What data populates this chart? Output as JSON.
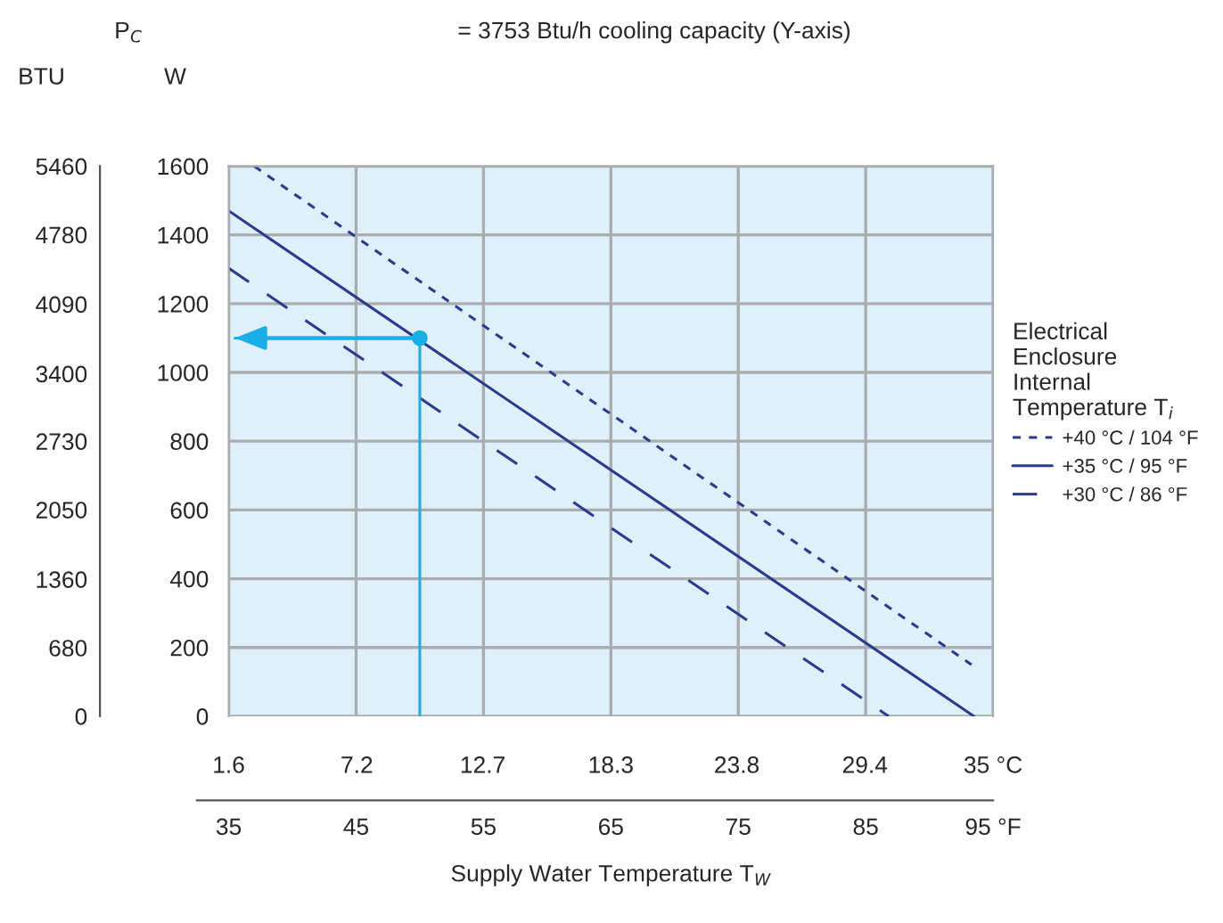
{
  "chart_data": {
    "type": "line",
    "annotations": [
      "P$_{C}$",
      "= 3753 Btu/h cooling capacity (Y-axis)"
    ],
    "xlabel": "Supply Water Temperature T$_{W}$",
    "ylabel": "W",
    "y2label": "BTU",
    "legend_title": "Electrical\nEnclosure\nInternal\nTemperature T$_{i}$",
    "xlim": [
      35,
      95
    ],
    "xticks": [
      35,
      45,
      55,
      65,
      75,
      85,
      {
        "value": 95,
        "label": "95 °F"
      }
    ],
    "x2lim": [
      1.6,
      35
    ],
    "x2ticks": [
      1.6,
      7.2,
      12.7,
      18.3,
      23.8,
      29.4,
      {
        "value": 35,
        "label": "35 °C"
      }
    ],
    "ylim": [
      0,
      1600
    ],
    "yticks": [
      0,
      200,
      400,
      600,
      800,
      1000,
      1200,
      1400,
      1600
    ],
    "y2lim": [
      0,
      5460
    ],
    "y2ticks": [
      0,
      680,
      1360,
      2050,
      2730,
      3400,
      4090,
      4780,
      5460
    ],
    "grid": true,
    "legend": "right",
    "series": [
      {
        "name": "+40 °C / 104 °F",
        "color": "#2b3a8c",
        "line_style": "dotted",
        "x": [
          37,
          93.3
        ],
        "values": [
          1600,
          150
        ]
      },
      {
        "name": "+35 °C / 95 °F",
        "color": "#2b3a8c",
        "line_style": "solid",
        "x": [
          35,
          93.5
        ],
        "values": [
          1470,
          0
        ]
      },
      {
        "name": "+30 °C / 86 °F",
        "color": "#2b3a8c",
        "line_style": "dashed",
        "x": [
          35,
          86.8
        ],
        "values": [
          1303,
          0
        ]
      },
      {
        "color": "#19aee6",
        "line_style": "solid",
        "x": [
          50,
          50,
          35.5
        ],
        "values": [
          0,
          1100,
          1100
        ]
      },
      {
        "type": "scatter",
        "color": "#19aee6",
        "marker": "circle",
        "x": [
          50
        ],
        "values": [
          1100
        ]
      }
    ]
  }
}
